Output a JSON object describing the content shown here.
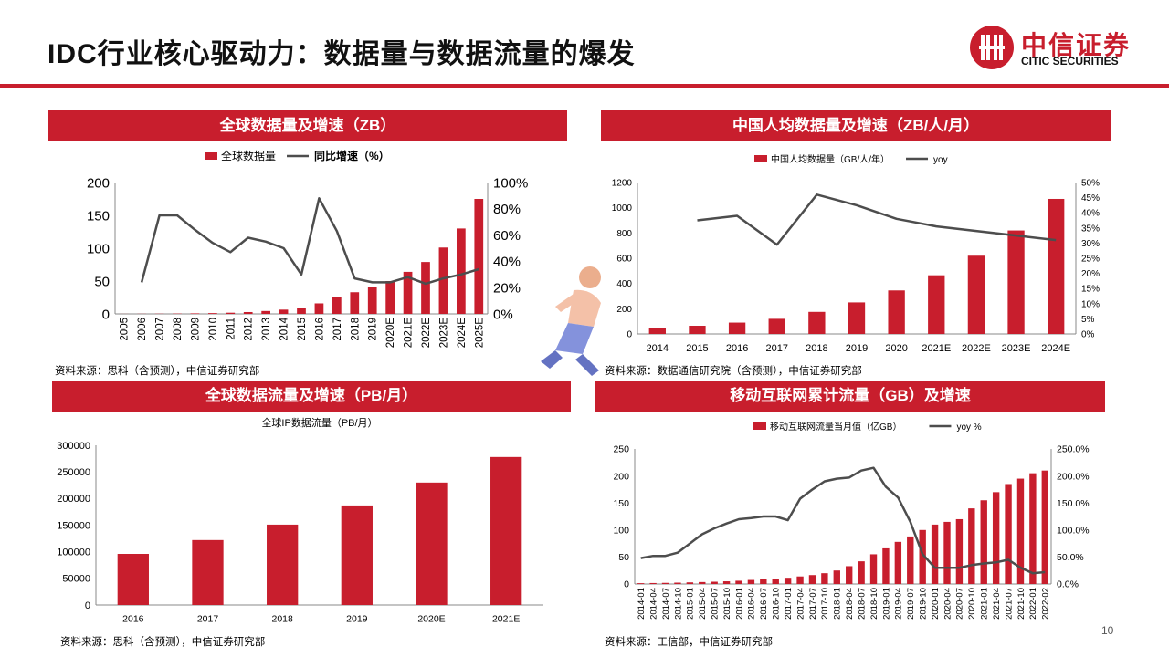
{
  "page": {
    "title": "IDC行业核心驱动力：数据量与数据流量的爆发",
    "page_number": "10",
    "logo_cn": "中信证券",
    "logo_en": "CITIC SECURITIES",
    "colors": {
      "brand_red": "#c81e2d",
      "line": "#4d4d4d"
    }
  },
  "panels": {
    "p1": {
      "title": "全球数据量及增速（ZB）",
      "source": "资料来源：思科（含预测），中信证券研究部"
    },
    "p2": {
      "title": "中国人均数据量及增速（ZB/人/月）",
      "source": "资料来源：数据通信研究院（含预测），中信证券研究部"
    },
    "p3": {
      "title": "全球数据流量及增速（PB/月）",
      "source": "资料来源：思科（含预测），中信证券研究部"
    },
    "p4": {
      "title": "移动互联网累计流量（GB）及增速",
      "source": "资料来源：工信部，中信证券研究部"
    }
  },
  "chart_data": [
    {
      "id": "global-data",
      "type": "bar",
      "categories": [
        "2005",
        "2006",
        "2007",
        "2008",
        "2009",
        "2010",
        "2011",
        "2012",
        "2013",
        "2014",
        "2015",
        "2016",
        "2017",
        "2018",
        "2019",
        "2020E",
        "2021E",
        "2022E",
        "2023E",
        "2024E",
        "2025E"
      ],
      "series": [
        {
          "name": "全球数据量",
          "type": "bar",
          "values": [
            0.1,
            0.2,
            0.3,
            0.5,
            0.8,
            1.2,
            1.8,
            2.8,
            4.4,
            6.5,
            8.5,
            16,
            26,
            33,
            41,
            50,
            64,
            79,
            101,
            130,
            175
          ]
        },
        {
          "name": "同比增速（%）",
          "type": "line",
          "axis": "right",
          "values": [
            null,
            24,
            75,
            75,
            64,
            54,
            47,
            58,
            55,
            50,
            30,
            88,
            63,
            27,
            24,
            24,
            28,
            23,
            27,
            30,
            34
          ]
        }
      ],
      "yticks": [
        "200",
        "150",
        "100",
        "50",
        "0"
      ],
      "ylim": [
        0,
        200
      ],
      "y2ticks": [
        "100%",
        "80%",
        "60%",
        "40%",
        "20%",
        "0%"
      ],
      "y2lim": [
        0,
        100
      ],
      "legend": "top"
    },
    {
      "id": "china-per-capita",
      "type": "bar",
      "categories": [
        "2014",
        "2015",
        "2016",
        "2017",
        "2018",
        "2019",
        "2020",
        "2021E",
        "2022E",
        "2023E",
        "2024E"
      ],
      "series": [
        {
          "name": "中国人均数据量（GB/人/年）",
          "type": "bar",
          "values": [
            45,
            65,
            90,
            120,
            175,
            250,
            345,
            465,
            620,
            820,
            1070
          ]
        },
        {
          "name": "yoy",
          "type": "line",
          "axis": "right",
          "values": [
            null,
            37.5,
            39,
            29.5,
            46,
            42.5,
            38,
            35.5,
            34,
            32.5,
            31
          ]
        }
      ],
      "yticks": [
        "1200",
        "1000",
        "800",
        "600",
        "400",
        "200",
        "0"
      ],
      "ylim": [
        0,
        1200
      ],
      "y2ticks": [
        "50%",
        "45%",
        "40%",
        "35%",
        "30%",
        "25%",
        "20%",
        "15%",
        "10%",
        "5%",
        "0%"
      ],
      "y2lim": [
        0,
        50
      ],
      "legend": "top"
    },
    {
      "id": "global-ip-traffic",
      "type": "bar",
      "title": "全球IP数据流量（PB/月）",
      "categories": [
        "2016",
        "2017",
        "2018",
        "2019",
        "2020E",
        "2021E"
      ],
      "series": [
        {
          "name": "全球IP数据流量（PB/月）",
          "type": "bar",
          "values": [
            96000,
            122000,
            151000,
            187000,
            230000,
            278000
          ]
        }
      ],
      "yticks": [
        "300000",
        "250000",
        "200000",
        "150000",
        "100000",
        "50000",
        "0"
      ],
      "ylim": [
        0,
        300000
      ]
    },
    {
      "id": "mobile-internet-traffic",
      "type": "bar",
      "categories": [
        "2014-01",
        "2014-04",
        "2014-07",
        "2014-10",
        "2015-01",
        "2015-04",
        "2015-07",
        "2015-10",
        "2016-01",
        "2016-04",
        "2016-07",
        "2016-10",
        "2017-01",
        "2017-04",
        "2017-07",
        "2017-10",
        "2018-01",
        "2018-04",
        "2018-07",
        "2018-10",
        "2019-01",
        "2019-04",
        "2019-07",
        "2019-10",
        "2020-01",
        "2020-04",
        "2020-07",
        "2020-10",
        "2021-01",
        "2021-04",
        "2021-07",
        "2021-10",
        "2022-01",
        "2022-02"
      ],
      "series": [
        {
          "name": "移动互联网流量当月值（亿GB）",
          "type": "bar",
          "values": [
            1.5,
            1.8,
            2.1,
            2.5,
            3,
            3.6,
            4.2,
            5,
            6,
            7.5,
            8.5,
            10,
            11.5,
            14,
            16.5,
            20,
            25,
            33,
            42,
            55,
            66,
            78,
            88,
            100,
            110,
            115,
            120,
            140,
            155,
            170,
            185,
            195,
            205,
            210
          ]
        },
        {
          "name": "yoy %",
          "type": "line",
          "axis": "right",
          "values": [
            48,
            52,
            52,
            58,
            75,
            92,
            103,
            112,
            120,
            122,
            125,
            125,
            118,
            158,
            175,
            190,
            195,
            197,
            210,
            215,
            180,
            160,
            115,
            55,
            30,
            30,
            30,
            35,
            38,
            40,
            45,
            30,
            20,
            22
          ]
        }
      ],
      "yticks": [
        "250",
        "200",
        "150",
        "100",
        "50",
        "0"
      ],
      "ylim": [
        0,
        250
      ],
      "y2ticks": [
        "250.0%",
        "200.0%",
        "150.0%",
        "100.0%",
        "50.0%",
        "0.0%"
      ],
      "y2lim": [
        0,
        250
      ],
      "legend": "top"
    }
  ]
}
